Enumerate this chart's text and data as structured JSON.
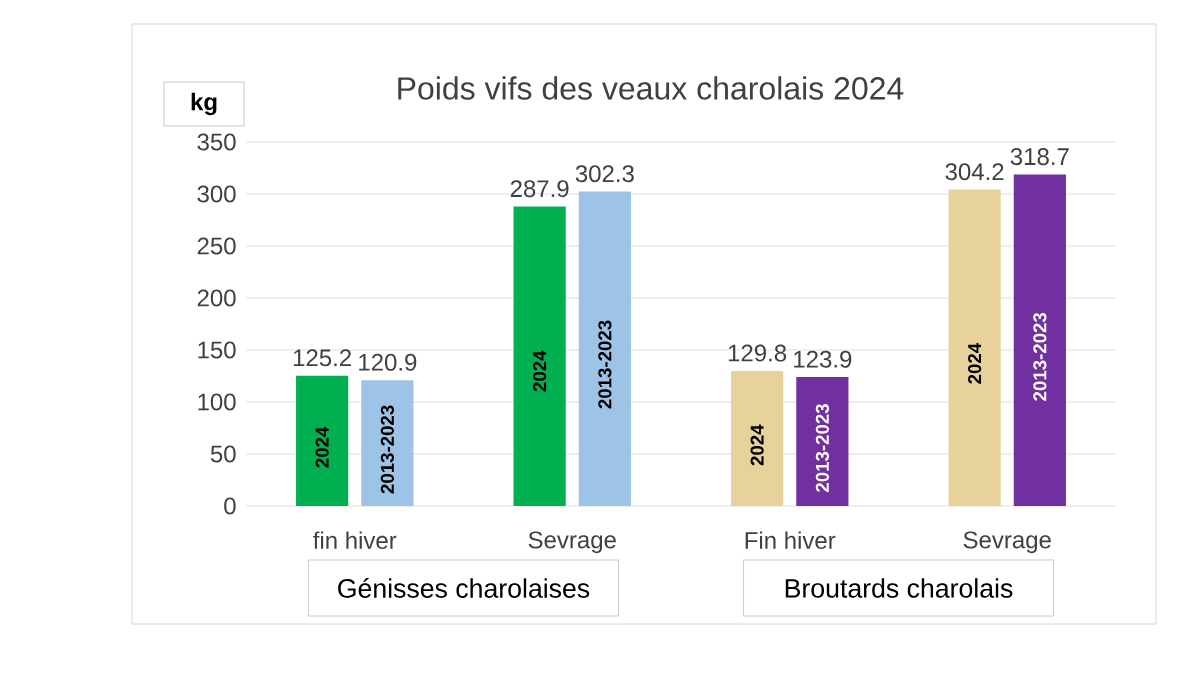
{
  "chart_data": {
    "type": "bar",
    "title": "Poids vifs des veaux charolais 2024",
    "ylabel": "kg",
    "categories": [
      "fin hiver",
      "Sevrage",
      "Fin hiver",
      "Sevrage"
    ],
    "series": [
      {
        "name": "2024",
        "colors": [
          "#00b050",
          "#00b050",
          "#e6d29a",
          "#e6d29a"
        ],
        "values": [
          125.2,
          287.9,
          129.8,
          304.2
        ]
      },
      {
        "name": "2013-2023",
        "colors": [
          "#9dc3e6",
          "#9dc3e6",
          "#7030a0",
          "#7030a0"
        ],
        "values": [
          120.9,
          302.3,
          123.9,
          318.7
        ]
      }
    ],
    "ylim": [
      0,
      350
    ],
    "yticks": [
      0,
      50,
      100,
      150,
      200,
      250,
      300,
      350
    ],
    "grid": "y",
    "data_labels": true,
    "annotations": [
      "Génisses charolaises",
      "Broutards charolais"
    ]
  }
}
